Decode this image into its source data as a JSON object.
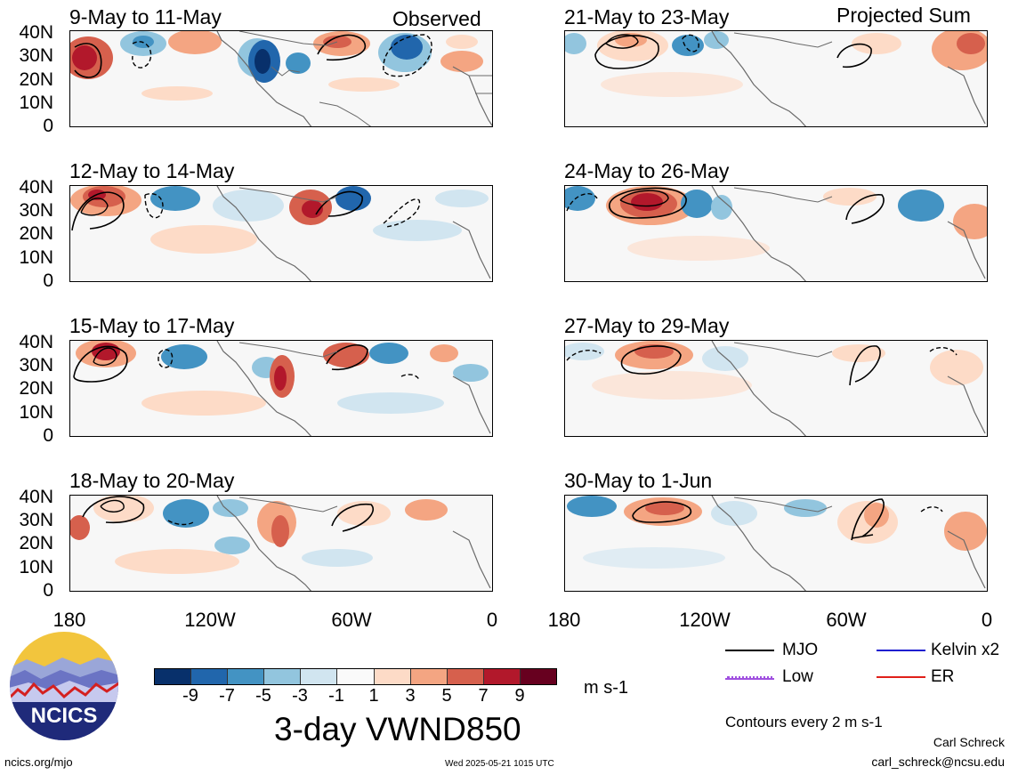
{
  "left_panels": [
    {
      "title": "9-May to 11-May",
      "tag": "Observed"
    },
    {
      "title": "12-May to 14-May",
      "tag": ""
    },
    {
      "title": "15-May to 17-May",
      "tag": ""
    },
    {
      "title": "18-May to 20-May",
      "tag": ""
    }
  ],
  "right_panels": [
    {
      "title": "21-May to 23-May",
      "tag": "Projected Sum"
    },
    {
      "title": "24-May to 26-May",
      "tag": ""
    },
    {
      "title": "27-May to 29-May",
      "tag": ""
    },
    {
      "title": "30-May to 1-Jun",
      "tag": ""
    }
  ],
  "lat_labels": [
    "40N",
    "30N",
    "20N",
    "10N",
    "0"
  ],
  "lon_labels": [
    "180",
    "120W",
    "60W",
    "0"
  ],
  "colorbar": {
    "ticks": [
      "-9",
      "-7",
      "-5",
      "-3",
      "-1",
      "1",
      "3",
      "5",
      "7",
      "9"
    ],
    "colors": [
      "#08306b",
      "#2166ac",
      "#4393c3",
      "#92c5de",
      "#d1e5f0",
      "#fafafa",
      "#fddbc7",
      "#f4a582",
      "#d6604d",
      "#b2182b",
      "#67001f"
    ],
    "units": "m s-1",
    "title": "3-day VWND850"
  },
  "legend": {
    "mjo": "MJO",
    "kelvin": "Kelvin x2",
    "low": "Low",
    "er": "ER",
    "contours": "Contours every 2 m s-1",
    "colors": {
      "mjo": "#000000",
      "kelvin": "#1f1fd0",
      "low": "#a050e0",
      "er": "#e0201a"
    }
  },
  "logo": {
    "text": "NCICS"
  },
  "footer": {
    "url": "ncics.org/mjo",
    "timestamp": "Wed 2025-05-21 1015 UTC",
    "author": "Carl Schreck",
    "email": "carl_schreck@ncsu.edu"
  }
}
